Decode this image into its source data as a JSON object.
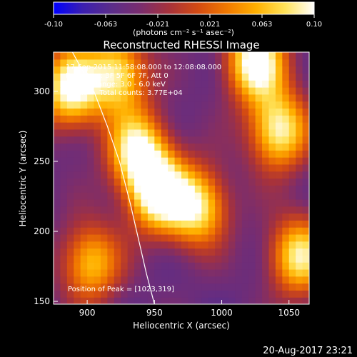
{
  "colorbar": {
    "ticks": [
      "-0.10",
      "-0.063",
      "-0.021",
      "0.021",
      "0.063",
      "0.10"
    ],
    "units_label": "(photons cm⁻² s⁻¹ asec⁻²)",
    "stops": [
      "#0000ff",
      "#3b1fb0",
      "#5b2d8a",
      "#7a2d6e",
      "#a8323a",
      "#d44b12",
      "#f27a00",
      "#ffb000",
      "#ffe35a",
      "#ffffff"
    ]
  },
  "chart_data": {
    "type": "heatmap",
    "title": "Reconstructed RHESSI Image",
    "xlabel": "Heliocentric X (arcsec)",
    "ylabel": "Heliocentric Y (arcsec)",
    "xlim": [
      875,
      1065
    ],
    "ylim": [
      148,
      328
    ],
    "xticks": [
      900,
      950,
      1000,
      1050
    ],
    "yticks": [
      150,
      200,
      250,
      300
    ],
    "xtick_labels": [
      "900",
      "950",
      "1000",
      "1050"
    ],
    "ytick_labels": [
      "150",
      "200",
      "250",
      "300"
    ],
    "annotations": [
      "17-Sep-2015 11:58:08.000 to 12:08:08.000",
      "Detectors: 3F 5F 6F 7F, Att 0",
      "Energy Range: 3.0 - 6.0 keV",
      "Clean      Total counts: 3.77E+04"
    ],
    "peak_label": "Position of Peak = [1023,319]",
    "peak": [
      1023,
      319
    ],
    "limb_curve": [
      [
        889,
        328
      ],
      [
        905,
        300
      ],
      [
        915,
        275
      ],
      [
        924,
        250
      ],
      [
        932,
        220
      ],
      [
        938,
        195
      ],
      [
        944,
        170
      ],
      [
        950,
        148
      ]
    ],
    "bright_regions": [
      {
        "x": 885,
        "y": 300,
        "intensity": 0.09
      },
      {
        "x": 920,
        "y": 310,
        "intensity": 0.07
      },
      {
        "x": 935,
        "y": 255,
        "intensity": 0.08
      },
      {
        "x": 950,
        "y": 225,
        "intensity": 0.09
      },
      {
        "x": 980,
        "y": 215,
        "intensity": 0.07
      },
      {
        "x": 1023,
        "y": 319,
        "intensity": 0.1
      },
      {
        "x": 1040,
        "y": 270,
        "intensity": 0.08
      },
      {
        "x": 1055,
        "y": 180,
        "intensity": 0.07
      },
      {
        "x": 900,
        "y": 175,
        "intensity": 0.05
      }
    ]
  },
  "footer": {
    "timestamp": "20-Aug-2017 23:21"
  }
}
